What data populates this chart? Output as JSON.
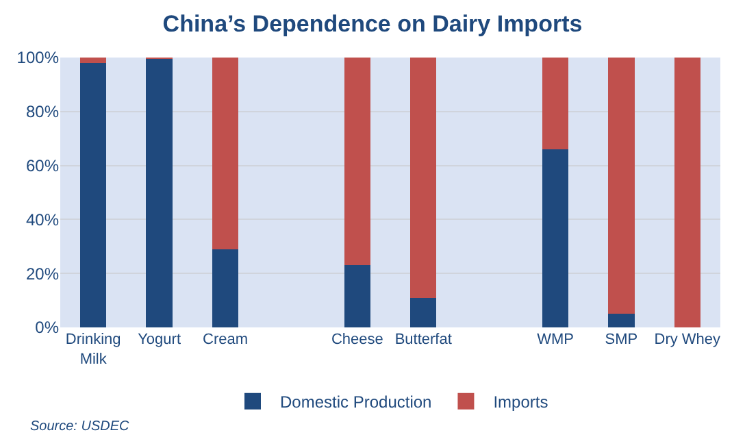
{
  "chart_data": {
    "type": "bar",
    "title": "China’s Dependence on Dairy Imports",
    "categories": [
      "Drinking\nMilk",
      "Yogurt",
      "Cream",
      null,
      "Cheese",
      "Butterfat",
      null,
      "WMP",
      "SMP",
      "Dry Whey"
    ],
    "stacked": true,
    "series": [
      {
        "name": "Domestic Production",
        "color": "#1f497d",
        "values": [
          98,
          99.5,
          29,
          null,
          23,
          11,
          null,
          66,
          5,
          0
        ]
      },
      {
        "name": "Imports",
        "color": "#c0504d",
        "values": [
          2,
          0.5,
          71,
          null,
          77,
          89,
          null,
          34,
          95,
          100
        ]
      }
    ],
    "ylim": [
      0,
      100
    ],
    "yticks": [
      {
        "value": 0,
        "label": "0%"
      },
      {
        "value": 20,
        "label": "20%"
      },
      {
        "value": 40,
        "label": "40%"
      },
      {
        "value": 60,
        "label": "60%"
      },
      {
        "value": 80,
        "label": "80%"
      },
      {
        "value": 100,
        "label": "100%"
      }
    ],
    "grid": "y",
    "legend": "bottom",
    "annotations": [
      "Source: USDEC"
    ]
  }
}
